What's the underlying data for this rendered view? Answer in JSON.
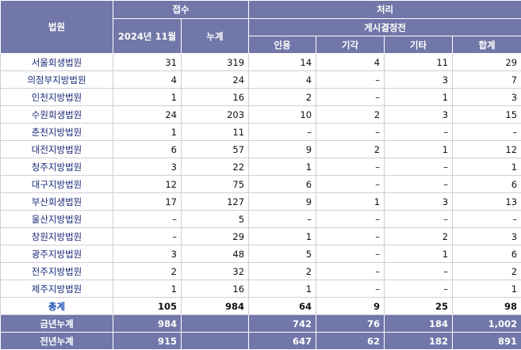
{
  "table": {
    "header": {
      "court": "법원",
      "receipt": "접수",
      "processing": "처리",
      "month": "2024년 11월",
      "cumulative": "누계",
      "pre_decision": "게시결정전",
      "accepted": "인용",
      "dismissed": "기각",
      "other": "기타",
      "sum": "합계"
    },
    "rows": [
      [
        "서울회생법원",
        "31",
        "319",
        "14",
        "4",
        "11",
        "29"
      ],
      [
        "의정부지방법원",
        "4",
        "24",
        "4",
        "–",
        "3",
        "7"
      ],
      [
        "인천지방법원",
        "1",
        "16",
        "2",
        "–",
        "1",
        "3"
      ],
      [
        "수원회생법원",
        "24",
        "203",
        "10",
        "2",
        "3",
        "15"
      ],
      [
        "춘천지방법원",
        "1",
        "11",
        "–",
        "–",
        "–",
        "–"
      ],
      [
        "대전지방법원",
        "6",
        "57",
        "9",
        "2",
        "1",
        "12"
      ],
      [
        "청주지방법원",
        "3",
        "22",
        "1",
        "–",
        "–",
        "1"
      ],
      [
        "대구지방법원",
        "12",
        "75",
        "6",
        "–",
        "–",
        "6"
      ],
      [
        "부산회생법원",
        "17",
        "127",
        "9",
        "1",
        "3",
        "13"
      ],
      [
        "울산지방법원",
        "–",
        "5",
        "–",
        "–",
        "–",
        "–"
      ],
      [
        "창원지방법원",
        "–",
        "29",
        "1",
        "–",
        "2",
        "3"
      ],
      [
        "광주지방법원",
        "3",
        "48",
        "5",
        "–",
        "1",
        "6"
      ],
      [
        "전주지방법원",
        "2",
        "32",
        "2",
        "–",
        "–",
        "2"
      ],
      [
        "제주지방법원",
        "1",
        "16",
        "1",
        "–",
        "–",
        "1"
      ]
    ],
    "total": [
      "총계",
      "105",
      "984",
      "64",
      "9",
      "25",
      "98"
    ],
    "this_year": [
      "금년누계",
      "984",
      null,
      "742",
      "76",
      "184",
      "1,002"
    ],
    "last_year": [
      "전년누계",
      "915",
      null,
      "647",
      "62",
      "182",
      "891"
    ]
  }
}
